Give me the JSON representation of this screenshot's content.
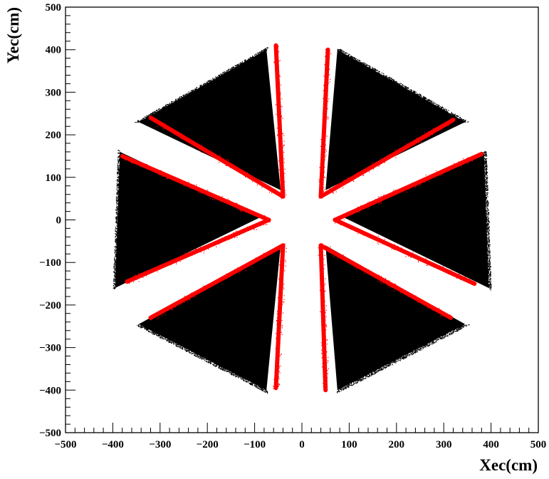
{
  "chart_data": {
    "type": "scatter",
    "title": "",
    "xlabel": "Xec(cm)",
    "ylabel": "Yec(cm)",
    "xlim": [
      -500,
      500
    ],
    "ylim": [
      -500,
      500
    ],
    "xticks": [
      -500,
      -400,
      -300,
      -200,
      -100,
      0,
      100,
      200,
      300,
      400,
      500
    ],
    "yticks": [
      -500,
      -400,
      -300,
      -200,
      -100,
      0,
      100,
      200,
      300,
      400,
      500
    ],
    "xtick_labels": [
      "−500",
      "−400",
      "−300",
      "−200",
      "−100",
      "0",
      "100",
      "200",
      "300",
      "400",
      "500"
    ],
    "ytick_labels": [
      "−500",
      "−400",
      "−300",
      "−200",
      "−100",
      "0",
      "100",
      "200",
      "300",
      "400",
      "500"
    ],
    "grid": false,
    "legend": "none",
    "series": [
      {
        "color": "#000000",
        "marker": "dot",
        "description_regions": [
          {
            "sector": "top-right",
            "vertices": [
              [
                50,
                70
              ],
              [
                75,
                400
              ],
              [
                345,
                230
              ]
            ]
          },
          {
            "sector": "right",
            "vertices": [
              [
                90,
                5
              ],
              [
                385,
                160
              ],
              [
                395,
                -160
              ]
            ]
          },
          {
            "sector": "bottom-right",
            "vertices": [
              [
                50,
                -60
              ],
              [
                75,
                -400
              ],
              [
                345,
                -245
              ]
            ]
          },
          {
            "sector": "bottom-left",
            "vertices": [
              [
                -45,
                -60
              ],
              [
                -75,
                -400
              ],
              [
                -345,
                -245
              ]
            ]
          },
          {
            "sector": "left",
            "vertices": [
              [
                -90,
                5
              ],
              [
                -385,
                160
              ],
              [
                -395,
                -160
              ]
            ]
          },
          {
            "sector": "top-left",
            "vertices": [
              [
                -45,
                70
              ],
              [
                -75,
                400
              ],
              [
                -345,
                230
              ]
            ]
          }
        ]
      },
      {
        "color": "#ff0000",
        "marker": "dot",
        "description_bands": [
          {
            "from": [
              -40,
              55
            ],
            "to": [
              -55,
              410
            ]
          },
          {
            "from": [
              40,
              55
            ],
            "to": [
              55,
              400
            ]
          },
          {
            "from": [
              -40,
              55
            ],
            "to": [
              -320,
              240
            ]
          },
          {
            "from": [
              40,
              55
            ],
            "to": [
              320,
              235
            ]
          },
          {
            "from": [
              -70,
              0
            ],
            "to": [
              -380,
              150
            ]
          },
          {
            "from": [
              70,
              0
            ],
            "to": [
              380,
              155
            ]
          },
          {
            "from": [
              -70,
              0
            ],
            "to": [
              -370,
              -145
            ]
          },
          {
            "from": [
              70,
              0
            ],
            "to": [
              365,
              -150
            ]
          },
          {
            "from": [
              -40,
              -60
            ],
            "to": [
              -320,
              -230
            ]
          },
          {
            "from": [
              40,
              -60
            ],
            "to": [
              315,
              -230
            ]
          },
          {
            "from": [
              -40,
              -60
            ],
            "to": [
              -55,
              -395
            ]
          },
          {
            "from": [
              40,
              -60
            ],
            "to": [
              50,
              -400
            ]
          }
        ]
      }
    ]
  }
}
